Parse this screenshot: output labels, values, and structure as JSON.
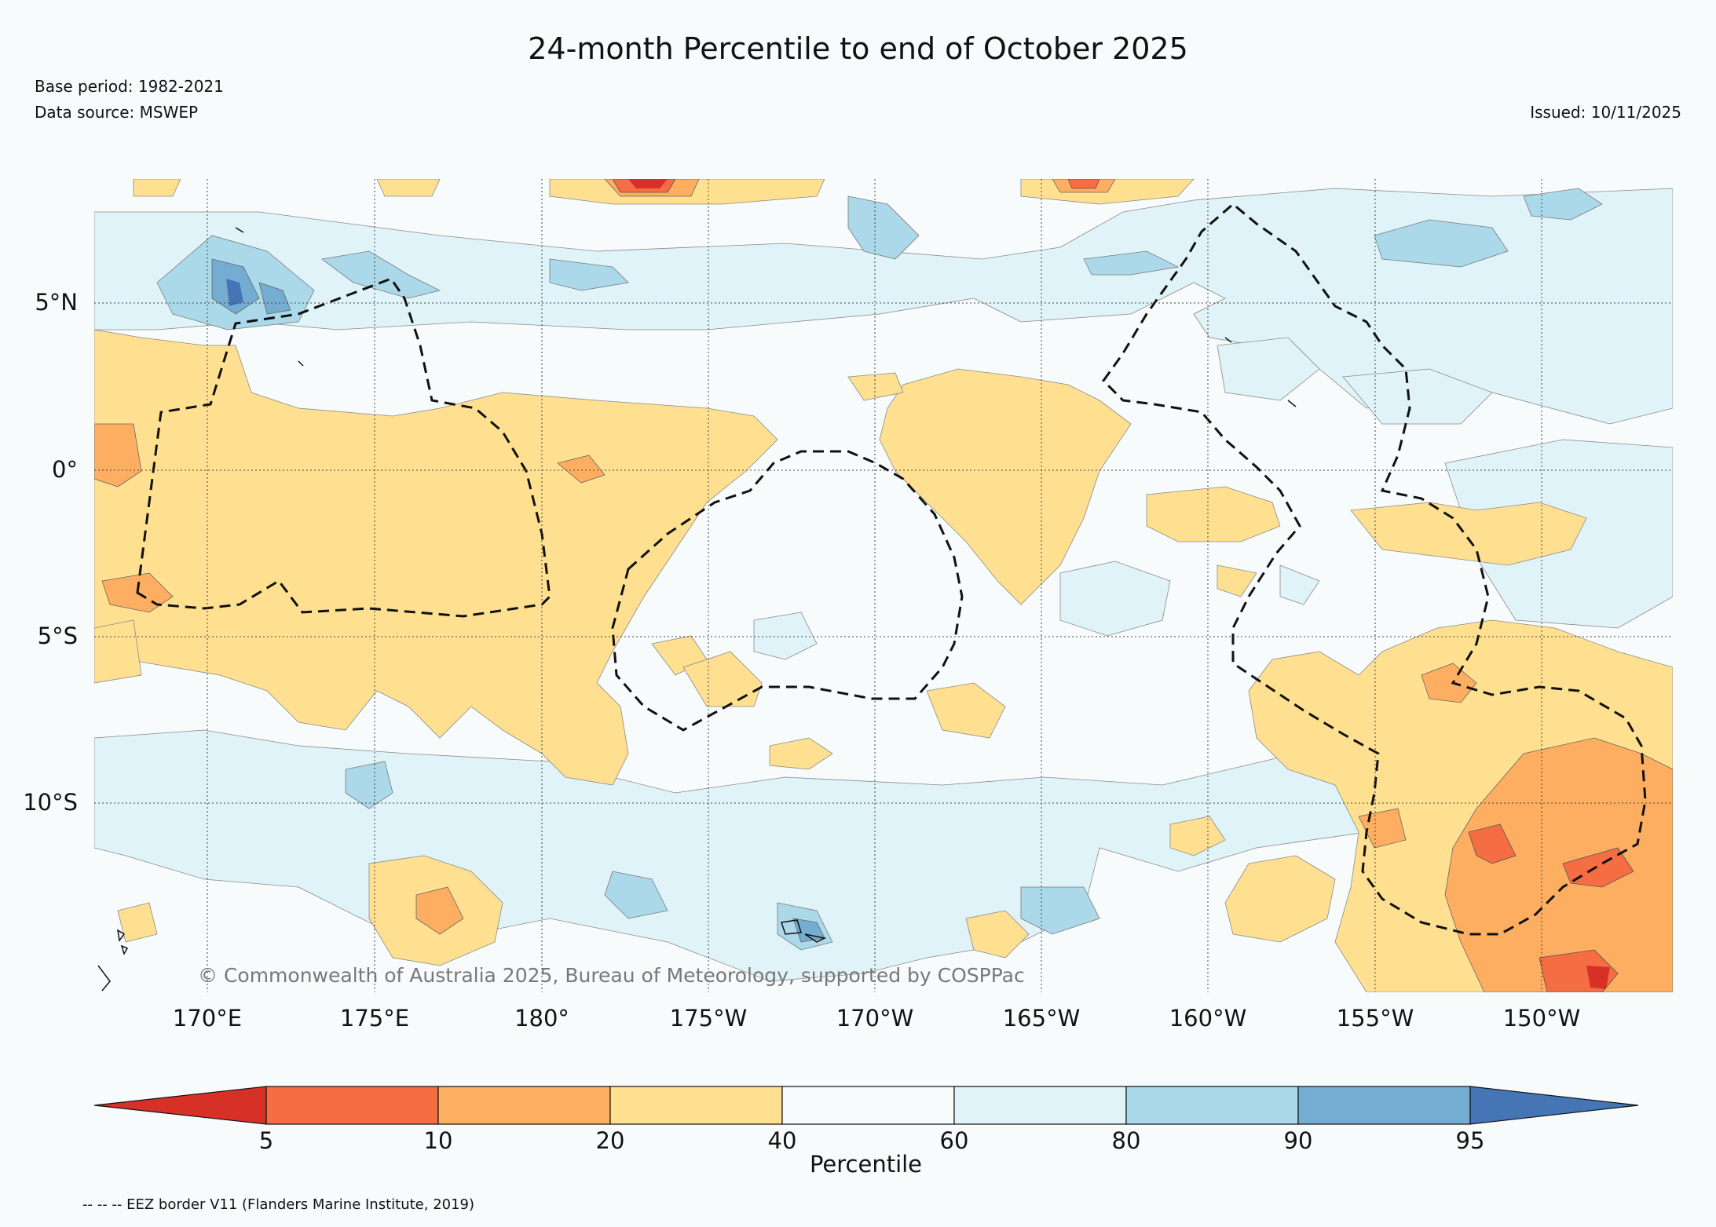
{
  "header": {
    "title": "24-month Percentile to end of October 2025",
    "base_period": "Base period: 1982-2021",
    "data_source": "Data source: MSWEP",
    "issued": "Issued: 10/11/2025"
  },
  "map": {
    "copyright": "© Commonwealth of Australia 2025, Bureau of Meteorology, supported by COSPPac",
    "lat_labels": [
      "5°N",
      "0°",
      "5°S",
      "10°S"
    ],
    "lon_labels": [
      "170°E",
      "175°E",
      "180°",
      "175°W",
      "170°W",
      "165°W",
      "160°W",
      "155°W",
      "150°W"
    ],
    "extent": {
      "lon_min": 166.6,
      "lon_max": 213.9,
      "lat_min": -15.5,
      "lat_max": 8.9
    },
    "background_color": "#f7fbfc"
  },
  "colorbar": {
    "label": "Percentile",
    "ticks": [
      "5",
      "10",
      "20",
      "40",
      "60",
      "80",
      "90",
      "95"
    ],
    "colors": [
      "#d73027",
      "#f46d43",
      "#fdae61",
      "#fee090",
      "#f7fbfc",
      "#e0f3f8",
      "#abd9e9",
      "#74add1",
      "#4575b4"
    ]
  },
  "footer": {
    "eez_note": "-- -- -- EEZ border V11 (Flanders Marine Institute, 2019)"
  }
}
